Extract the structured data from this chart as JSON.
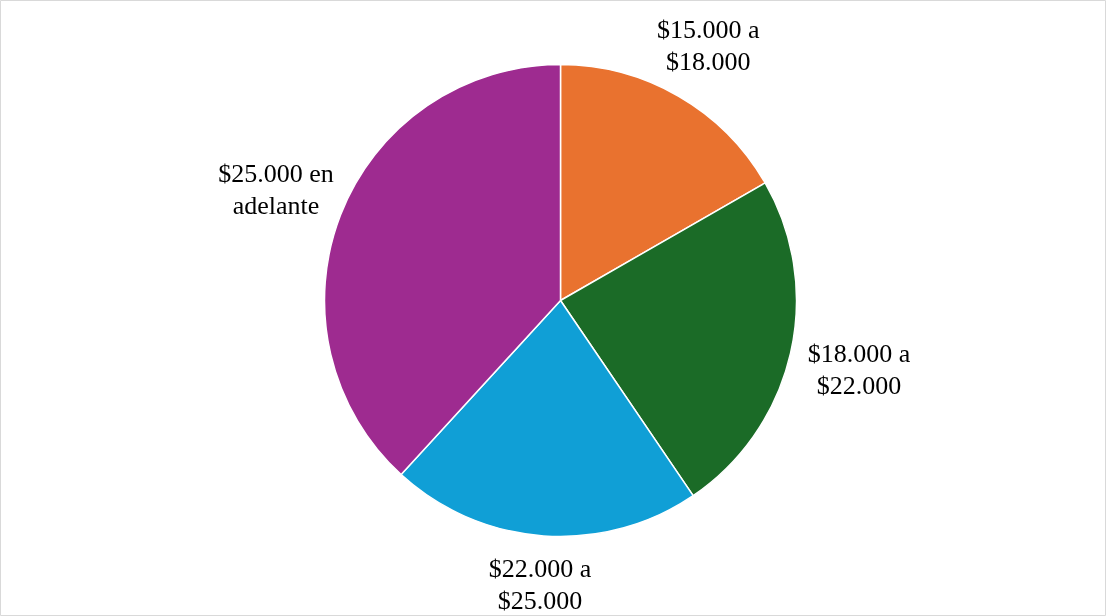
{
  "chart_data": {
    "type": "pie",
    "categories": [
      "$15.000 a $18.000",
      "$18.000 a $22.000",
      "$22.000 a $25.000",
      "$25.000 en adelante"
    ],
    "values": [
      16.7,
      23.8,
      21.3,
      38.2
    ],
    "colors": [
      "#e9722f",
      "#1b6b27",
      "#109fd6",
      "#9e2b90"
    ]
  }
}
